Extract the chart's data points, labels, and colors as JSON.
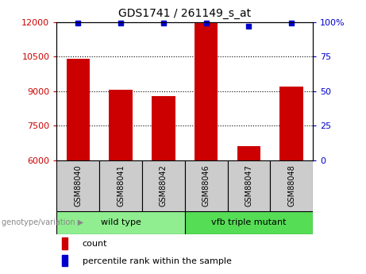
{
  "title": "GDS1741 / 261149_s_at",
  "categories": [
    "GSM88040",
    "GSM88041",
    "GSM88042",
    "GSM88046",
    "GSM88047",
    "GSM88048"
  ],
  "bar_values": [
    10400,
    9050,
    8800,
    11950,
    6600,
    9200
  ],
  "percentile_values": [
    100,
    100,
    100,
    100,
    97,
    100
  ],
  "bar_color": "#cc0000",
  "percentile_color": "#0000cc",
  "ymin": 6000,
  "ymax": 12000,
  "yticks": [
    6000,
    7500,
    9000,
    10500,
    12000
  ],
  "y2ticks": [
    0,
    25,
    50,
    75,
    100
  ],
  "y2labels": [
    "0",
    "25",
    "50",
    "75",
    "100%"
  ],
  "y2min": 0,
  "y2max": 100,
  "groups": [
    {
      "label": "wild type",
      "indices": [
        0,
        1,
        2
      ],
      "color": "#90ee90"
    },
    {
      "label": "vfb triple mutant",
      "indices": [
        3,
        4,
        5
      ],
      "color": "#55dd55"
    }
  ],
  "group_label": "genotype/variation",
  "legend_count_label": "count",
  "legend_percentile_label": "percentile rank within the sample",
  "tick_color_left": "#cc0000",
  "tick_color_right": "#0000cc",
  "label_box_color": "#cccccc",
  "bar_width": 0.55
}
